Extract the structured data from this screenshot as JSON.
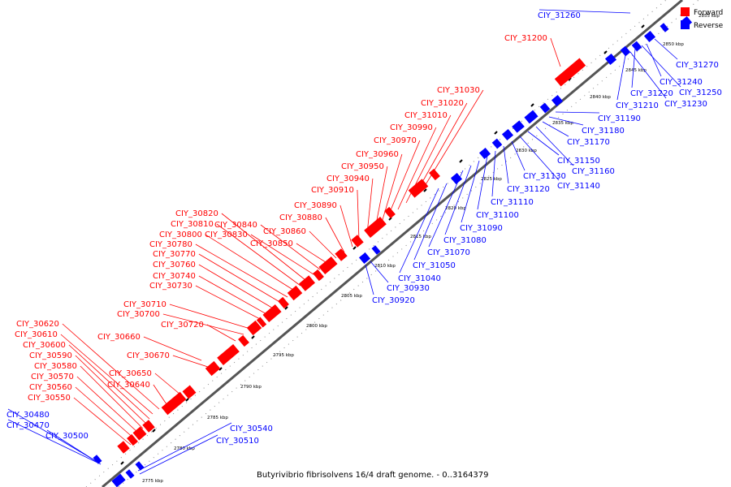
{
  "caption": "Butyrivibrio fibrisolvens 16/4 draft genome. - 0..3164379",
  "legend": {
    "forward_label": "Forward",
    "reverse_label": "Reverse",
    "forward_color": "#ff0000",
    "reverse_color": "#0000ff"
  },
  "ticks": [
    "2775 kbp",
    "2780 kbp",
    "2785 kbp",
    "2790 kbp",
    "2795 kbp",
    "2800 kbp",
    "2805 kbp",
    "2810 kbp",
    "2815 kbp",
    "2820 kbp",
    "2825 kbp",
    "2830 kbp",
    "2835 kbp",
    "2840 kbp",
    "2845 kbp",
    "2850 kbp",
    "2855 kbp"
  ],
  "forward_genes": [
    "CIY_30550",
    "CIY_30560",
    "CIY_30570",
    "CIY_30580",
    "CIY_30590",
    "CIY_30600",
    "CIY_30610",
    "CIY_30620",
    "CIY_30640",
    "CIY_30650",
    "CIY_30670",
    "CIY_30660",
    "CIY_30720",
    "CIY_30700",
    "CIY_30710",
    "CIY_30730",
    "CIY_30740",
    "CIY_30760",
    "CIY_30770",
    "CIY_30780",
    "CIY_30800",
    "CIY_30810",
    "CIY_30820",
    "CIY_30830",
    "CIY_30840",
    "CIY_30850",
    "CIY_30860",
    "CIY_30880",
    "CIY_30890",
    "CIY_30910",
    "CIY_30940",
    "CIY_30950",
    "CIY_30960",
    "CIY_30970",
    "CIY_30990",
    "CIY_31010",
    "CIY_31020",
    "CIY_31030",
    "CIY_31200"
  ],
  "reverse_genes": [
    "CIY_30480",
    "CIY_30470",
    "CIY_30500",
    "CIY_30540",
    "CIY_30510",
    "CIY_30920",
    "CIY_30930",
    "CIY_31040",
    "CIY_31050",
    "CIY_31070",
    "CIY_31080",
    "CIY_31090",
    "CIY_31100",
    "CIY_31110",
    "CIY_31120",
    "CIY_31130",
    "CIY_31140",
    "CIY_31150",
    "CIY_31160",
    "CIY_31170",
    "CIY_31180",
    "CIY_31190",
    "CIY_31210",
    "CIY_31230",
    "CIY_31220",
    "CIY_31250",
    "CIY_31240",
    "CIY_31270",
    "CIY_31260"
  ]
}
